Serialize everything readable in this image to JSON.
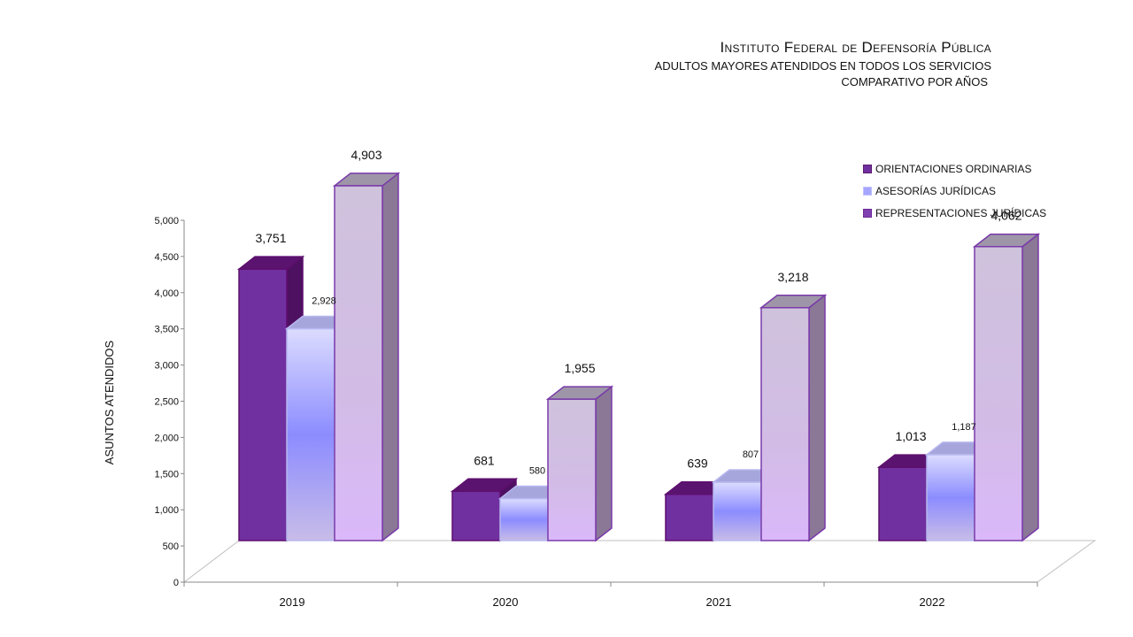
{
  "header": {
    "title": "Instituto Federal de Defensoría Pública",
    "subtitle": "ADULTOS MAYORES ATENDIDOS EN TODOS LOS SERVICIOS",
    "subtitle2": "COMPARATIVO POR AÑOS"
  },
  "chart_data": {
    "type": "bar",
    "title": "Instituto Federal de Defensoría Pública",
    "subtitle": "ADULTOS MAYORES ATENDIDOS EN TODOS LOS SERVICIOS COMPARATIVO POR AÑOS",
    "xlabel": "",
    "ylabel": "ASUNTOS ATENDIDOS",
    "ylim": [
      0,
      5000
    ],
    "yticks": [
      0,
      500,
      1000,
      1500,
      2000,
      2500,
      3000,
      3500,
      4000,
      4500,
      5000
    ],
    "ytick_labels": [
      "0",
      "500",
      "1,000",
      "1,500",
      "2,000",
      "2,500",
      "3,000",
      "3,500",
      "4,000",
      "4,500",
      "5,000"
    ],
    "categories": [
      "2019",
      "2020",
      "2021",
      "2022"
    ],
    "series": [
      {
        "name": "ORIENTACIONES ORDINARIAS",
        "values": [
          3751,
          681,
          639,
          1013
        ],
        "labels": [
          "3,751",
          "681",
          "639",
          "1,013"
        ],
        "color": "#7030a0"
      },
      {
        "name": "ASESORÍAS JURÍDICAS",
        "values": [
          2928,
          580,
          807,
          1187
        ],
        "labels": [
          "2,928",
          "580",
          "807",
          "1,187"
        ],
        "color": "#8c8cff"
      },
      {
        "name": "REPRESENTACIONES JURÍDICAS",
        "values": [
          4903,
          1955,
          3218,
          4062
        ],
        "labels": [
          "4,903",
          "1,955",
          "3,218",
          "4,062"
        ],
        "color": "#d4b8f0"
      }
    ],
    "legend": "top-right",
    "grid": false
  }
}
